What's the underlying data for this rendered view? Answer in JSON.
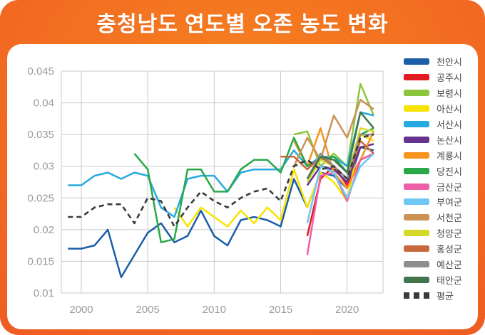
{
  "header": {
    "title": "충청남도 연도별 오존 농도 변화"
  },
  "colors": {
    "frame_gradient_center": "#f6821f",
    "frame_gradient_edge": "#dd4326",
    "card_bg": "#ffffff",
    "grid": "#c9c9c9",
    "axis_label": "#9b9b9b",
    "legend_text": "#4a4a4a",
    "title_text": "#ffffff"
  },
  "chart_data": {
    "type": "line",
    "title": "충청남도 연도별 오존 농도 변화",
    "xlabel": "",
    "ylabel": "",
    "grid": true,
    "legend_position": "right",
    "xlim": [
      1998.5,
      2022.7
    ],
    "ylim": [
      0.01,
      0.045
    ],
    "xticks": [
      2000,
      2005,
      2010,
      2015,
      2020
    ],
    "xtick_labels": [
      "2000",
      "2005",
      "2010",
      "2015",
      "2020"
    ],
    "yticks": [
      0.01,
      0.015,
      0.02,
      0.025,
      0.03,
      0.035,
      0.04,
      0.045
    ],
    "ytick_labels": [
      "0.01",
      "0.015",
      "0.02",
      "0.025",
      "0.03",
      "0.035",
      "0.04",
      "0.045"
    ],
    "x": [
      1999,
      2000,
      2001,
      2002,
      2003,
      2004,
      2005,
      2006,
      2007,
      2008,
      2009,
      2010,
      2011,
      2012,
      2013,
      2014,
      2015,
      2016,
      2017,
      2018,
      2019,
      2020,
      2021,
      2022
    ],
    "series": [
      {
        "name": "천안시",
        "color": "#1b5ea6",
        "dash": false,
        "values": [
          0.017,
          0.017,
          0.0175,
          0.02,
          0.0125,
          0.016,
          0.0195,
          0.021,
          0.018,
          0.019,
          0.023,
          0.019,
          0.0175,
          0.0215,
          0.022,
          0.0215,
          0.0205,
          0.028,
          0.0235,
          0.029,
          0.0285,
          0.0265,
          0.033,
          0.0325
        ]
      },
      {
        "name": "공주시",
        "color": "#e01b22",
        "dash": false,
        "values": [
          null,
          null,
          null,
          null,
          null,
          null,
          null,
          null,
          null,
          null,
          null,
          null,
          null,
          null,
          null,
          null,
          null,
          null,
          0.019,
          0.028,
          0.03,
          0.027,
          0.031,
          0.032
        ]
      },
      {
        "name": "보령시",
        "color": "#8cc63e",
        "dash": false,
        "values": [
          null,
          null,
          null,
          null,
          null,
          null,
          null,
          null,
          null,
          null,
          null,
          null,
          null,
          null,
          null,
          null,
          null,
          0.035,
          0.0355,
          0.03,
          0.032,
          0.03,
          0.043,
          0.038
        ]
      },
      {
        "name": "아산시",
        "color": "#f7e400",
        "dash": false,
        "values": [
          null,
          null,
          null,
          null,
          null,
          null,
          null,
          null,
          0.0235,
          0.0205,
          0.0235,
          0.022,
          0.0205,
          0.023,
          0.021,
          0.0235,
          0.0215,
          0.0295,
          0.0235,
          0.029,
          0.0275,
          0.0245,
          0.035,
          0.034
        ]
      },
      {
        "name": "서산시",
        "color": "#27a9e1",
        "dash": false,
        "values": [
          0.027,
          0.027,
          0.0285,
          0.029,
          0.028,
          0.029,
          0.0285,
          0.0235,
          0.022,
          0.028,
          0.0285,
          0.0285,
          0.026,
          0.029,
          0.0295,
          0.0295,
          0.0295,
          0.0325,
          0.03,
          0.0315,
          0.0315,
          0.03,
          0.0385,
          0.038
        ]
      },
      {
        "name": "논산시",
        "color": "#65338f",
        "dash": false,
        "values": [
          null,
          null,
          null,
          null,
          null,
          null,
          null,
          null,
          null,
          null,
          null,
          null,
          null,
          null,
          null,
          null,
          null,
          null,
          0.027,
          0.03,
          0.0295,
          0.0275,
          0.033,
          0.0335
        ]
      },
      {
        "name": "계룡시",
        "color": "#f7941e",
        "dash": false,
        "values": [
          null,
          null,
          null,
          null,
          null,
          null,
          null,
          null,
          null,
          null,
          null,
          null,
          null,
          null,
          null,
          null,
          null,
          0.034,
          0.03,
          0.036,
          0.029,
          0.0265,
          0.031,
          0.0355
        ]
      },
      {
        "name": "당진시",
        "color": "#2aa849",
        "dash": false,
        "values": [
          null,
          null,
          null,
          null,
          null,
          0.032,
          0.0295,
          0.018,
          0.0185,
          0.0295,
          0.0295,
          0.026,
          0.026,
          0.0295,
          0.031,
          0.031,
          0.029,
          0.0345,
          0.03,
          0.031,
          0.0315,
          0.029,
          0.035,
          0.036
        ]
      },
      {
        "name": "금산군",
        "color": "#ed5fa7",
        "dash": false,
        "values": [
          null,
          null,
          null,
          null,
          null,
          null,
          null,
          null,
          null,
          null,
          null,
          null,
          null,
          null,
          null,
          null,
          null,
          null,
          0.016,
          0.0285,
          0.029,
          0.0245,
          0.031,
          0.032
        ]
      },
      {
        "name": "부여군",
        "color": "#6dc8f2",
        "dash": false,
        "values": [
          null,
          null,
          null,
          null,
          null,
          null,
          null,
          null,
          null,
          null,
          null,
          null,
          null,
          null,
          null,
          null,
          null,
          null,
          0.021,
          0.03,
          0.029,
          0.025,
          0.03,
          0.032
        ]
      },
      {
        "name": "서천군",
        "color": "#cc9155",
        "dash": false,
        "values": [
          null,
          null,
          null,
          null,
          null,
          null,
          null,
          null,
          null,
          null,
          null,
          null,
          null,
          null,
          null,
          null,
          null,
          0.03,
          0.0345,
          0.031,
          0.038,
          0.0345,
          0.0405,
          0.039
        ]
      },
      {
        "name": "청양군",
        "color": "#d4d927",
        "dash": false,
        "values": [
          null,
          null,
          null,
          null,
          null,
          null,
          null,
          null,
          null,
          null,
          null,
          null,
          null,
          null,
          null,
          null,
          null,
          null,
          0.0275,
          0.031,
          0.03,
          0.028,
          0.036,
          0.0355
        ]
      },
      {
        "name": "홍성군",
        "color": "#c8683c",
        "dash": false,
        "values": [
          null,
          null,
          null,
          null,
          null,
          null,
          null,
          null,
          null,
          null,
          null,
          null,
          null,
          null,
          null,
          null,
          0.0315,
          0.0315,
          0.0295,
          0.0315,
          0.03,
          0.028,
          0.034,
          0.032
        ]
      },
      {
        "name": "예산군",
        "color": "#8e8e8e",
        "dash": false,
        "values": [
          null,
          null,
          null,
          null,
          null,
          null,
          null,
          null,
          null,
          null,
          null,
          null,
          null,
          null,
          null,
          null,
          null,
          null,
          0.028,
          0.032,
          0.03,
          0.028,
          0.035,
          0.035
        ]
      },
      {
        "name": "태안군",
        "color": "#41764c",
        "dash": false,
        "values": [
          null,
          null,
          null,
          null,
          null,
          null,
          null,
          null,
          null,
          null,
          null,
          null,
          null,
          null,
          null,
          null,
          null,
          null,
          0.028,
          0.0315,
          0.031,
          0.029,
          0.0385,
          0.036
        ]
      },
      {
        "name": "평균",
        "color": "#3a3a3a",
        "dash": true,
        "values": [
          0.022,
          0.022,
          0.0235,
          0.024,
          0.024,
          0.021,
          0.025,
          0.0245,
          0.0205,
          0.0235,
          0.026,
          0.0245,
          0.0235,
          0.025,
          0.026,
          0.0265,
          0.0245,
          0.03,
          0.031,
          0.0295,
          0.03,
          0.028,
          0.0345,
          0.035
        ]
      }
    ]
  }
}
